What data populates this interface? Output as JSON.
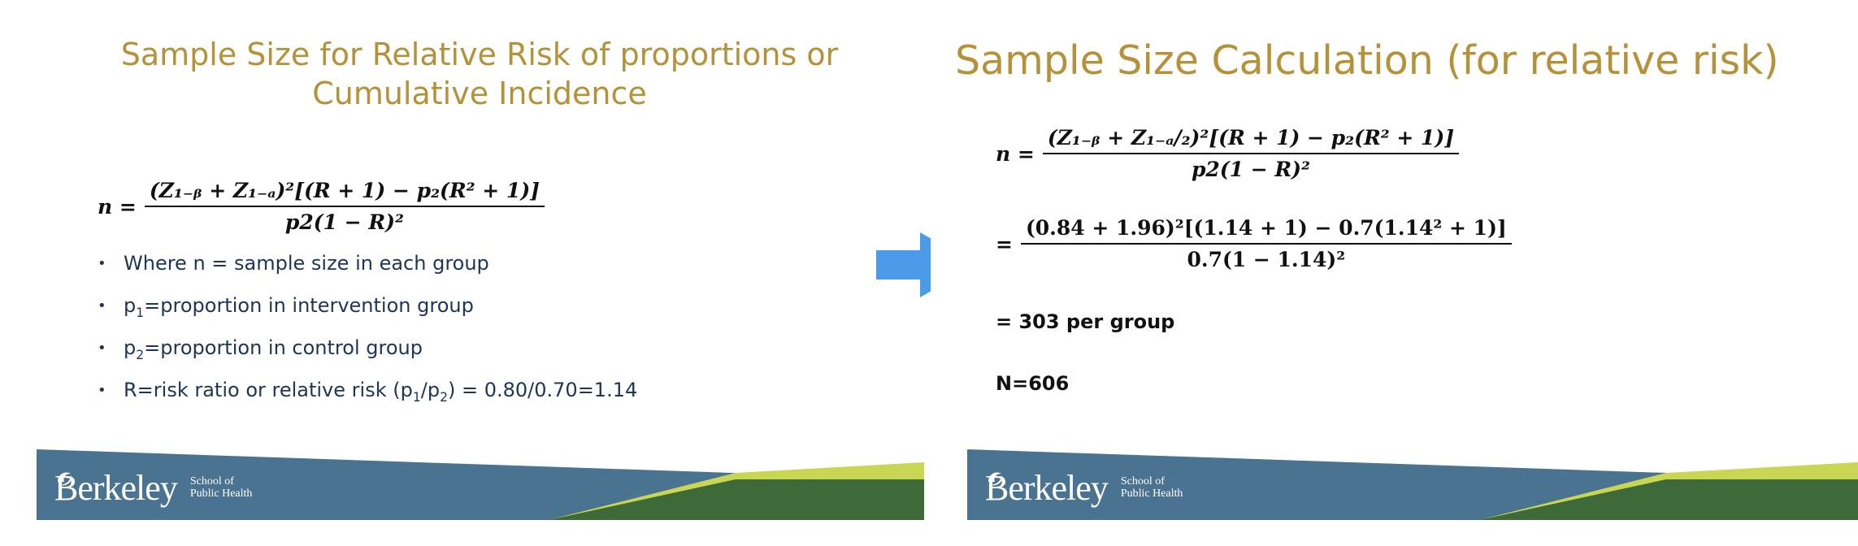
{
  "left_slide": {
    "title_line1": "Sample Size for Relative Risk of proportions or",
    "title_line2": "Cumulative Incidence",
    "formula": {
      "lhs": "n =",
      "numerator": "(Z₁₋ᵦ + Z₁₋ₐ)²[(R + 1) − p₂(R² + 1)]",
      "denominator": "p2(1 − R)²"
    },
    "bullets": [
      {
        "text": "Where n = sample size in each group"
      },
      {
        "prefix": "p",
        "sub": "1",
        "text": "=proportion in intervention group"
      },
      {
        "prefix": "p",
        "sub": "2",
        "text": "=proportion in control group"
      },
      {
        "text_a": "R=risk ratio or relative risk (p",
        "sub_a": "1",
        "text_b": "/p",
        "sub_b": "2",
        "text_c": ") = 0.80/0.70=1.14"
      }
    ]
  },
  "right_slide": {
    "title": "Sample Size Calculation (for relative risk)",
    "formula1": {
      "lhs": "n =",
      "numerator": "(Z₁₋ᵦ + Z₁₋ₐ/₂)²[(R + 1) − p₂(R² + 1)]",
      "denominator": "p2(1 − R)²"
    },
    "formula2": {
      "lhs": "=",
      "numerator": "(0.84 + 1.96)²[(1.14 + 1) − 0.7(1.14² + 1)]",
      "denominator": "0.7(1 − 1.14)²"
    },
    "result_per_group": "= 303 per group",
    "result_total": "N=606"
  },
  "footer": {
    "brand": "Berkeley",
    "school_line1": "School of",
    "school_line2": "Public Health"
  },
  "colors": {
    "title": "#b5913a",
    "bullet_text": "#1d3557",
    "footer_blue": "#4a7391",
    "footer_dark_green": "#3e6a3a",
    "footer_lime": "#c9d653",
    "arrow": "#4b9be8"
  },
  "icons": {
    "arrow": "right-arrow-icon",
    "logo": "school-of-public-health-logo"
  }
}
